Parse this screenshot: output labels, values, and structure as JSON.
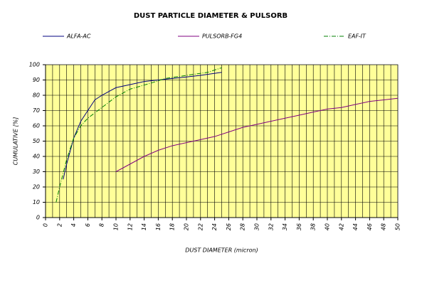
{
  "chart_data": {
    "type": "line",
    "title": "DUST PARTICLE DIAMETER & PULSORB",
    "x_label": "DUST DIAMETER (micron)",
    "y_label": "CUMULATIVE [%]",
    "xlim": [
      0,
      50
    ],
    "xticks": [
      0,
      2,
      4,
      6,
      8,
      10,
      12,
      14,
      16,
      18,
      20,
      22,
      24,
      26,
      28,
      30,
      32,
      34,
      36,
      38,
      40,
      42,
      44,
      46,
      48,
      50
    ],
    "x_minor_ticks": [
      1,
      3,
      5,
      7,
      9,
      11,
      13,
      15,
      17,
      19,
      21,
      23,
      25,
      27,
      29,
      31,
      33,
      35,
      37,
      39,
      41,
      43,
      45,
      47,
      49
    ],
    "ylim": [
      0,
      100
    ],
    "yticks": [
      0,
      10,
      20,
      30,
      40,
      50,
      60,
      70,
      80,
      90,
      100
    ],
    "grid": true,
    "background": "#ffff99",
    "legend": "top",
    "series": [
      {
        "name": "ALFA-AC",
        "color": "#000080",
        "dash": "solid",
        "x": [
          2.5,
          3,
          4,
          5,
          6,
          7,
          8,
          10,
          12,
          14,
          16,
          18,
          20,
          22,
          25
        ],
        "values": [
          25,
          35,
          52,
          63,
          70,
          77,
          80,
          85,
          87,
          89,
          90,
          91,
          92,
          93,
          95
        ]
      },
      {
        "name": "PULSORB-FG4",
        "color": "#800080",
        "dash": "solid",
        "x": [
          10,
          12,
          14,
          16,
          18,
          20,
          22,
          24,
          26,
          28,
          30,
          32,
          34,
          36,
          38,
          40,
          42,
          44,
          46,
          48,
          50
        ],
        "values": [
          30,
          35,
          40,
          44,
          47,
          49,
          51,
          53,
          56,
          59,
          61,
          63,
          65,
          67,
          69,
          71,
          72,
          74,
          76,
          77,
          78
        ]
      },
      {
        "name": "EAF-IT",
        "color": "#008000",
        "dash": "dashdot",
        "x": [
          1.5,
          2,
          3,
          4,
          5,
          6,
          8,
          10,
          12,
          15,
          17,
          20,
          23,
          25
        ],
        "values": [
          10,
          20,
          38,
          52,
          60,
          65,
          72,
          79,
          84,
          88,
          91,
          93,
          95,
          98
        ]
      }
    ]
  }
}
